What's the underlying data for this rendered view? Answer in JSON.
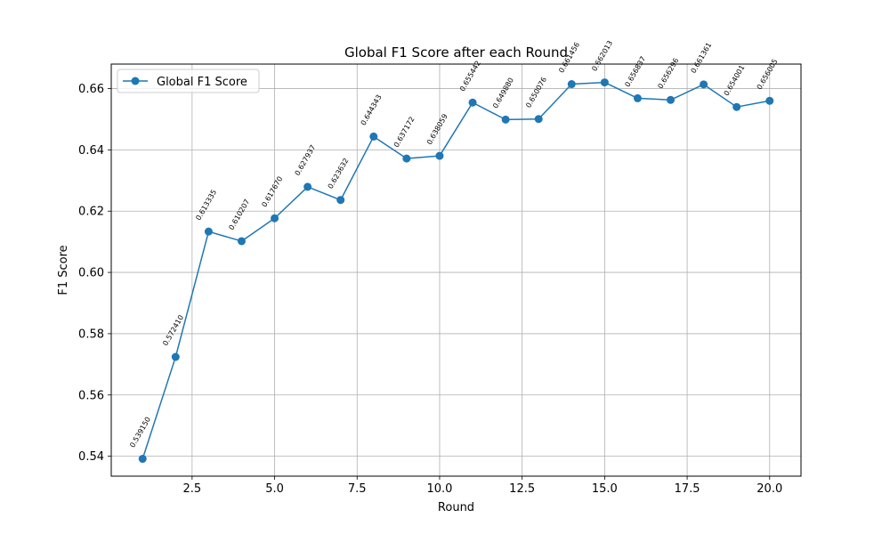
{
  "chart_data": {
    "type": "line",
    "title": "Global F1 Score after each Round",
    "xlabel": "Round",
    "ylabel": "F1 Score",
    "xlim": [
      0.05,
      20.95
    ],
    "ylim": [
      0.5335,
      0.668
    ],
    "xticks": [
      2.5,
      5.0,
      7.5,
      10.0,
      12.5,
      15.0,
      17.5,
      20.0
    ],
    "xtick_labels": [
      "2.5",
      "5.0",
      "7.5",
      "10.0",
      "12.5",
      "15.0",
      "17.5",
      "20.0"
    ],
    "yticks": [
      0.54,
      0.56,
      0.58,
      0.6,
      0.62,
      0.64,
      0.66
    ],
    "ytick_labels": [
      "0.54",
      "0.56",
      "0.58",
      "0.60",
      "0.62",
      "0.64",
      "0.66"
    ],
    "grid": true,
    "legend": {
      "placement": "top-left"
    },
    "series": [
      {
        "name": "Global F1 Score",
        "color": "#1f77b4",
        "x": [
          1,
          2,
          3,
          4,
          5,
          6,
          7,
          8,
          9,
          10,
          11,
          12,
          13,
          14,
          15,
          16,
          17,
          18,
          19,
          20
        ],
        "y": [
          0.53915,
          0.57241,
          0.613335,
          0.610207,
          0.61767,
          0.627937,
          0.623632,
          0.644343,
          0.637172,
          0.638059,
          0.655442,
          0.64988,
          0.650076,
          0.661456,
          0.662013,
          0.656837,
          0.656296,
          0.661361,
          0.654001,
          0.656005
        ],
        "labels": [
          "0.539150",
          "0.572410",
          "0.613335",
          "0.610207",
          "0.617670",
          "0.627937",
          "0.623632",
          "0.644343",
          "0.637172",
          "0.638059",
          "0.655442",
          "0.649880",
          "0.650076",
          "0.661456",
          "0.662013",
          "0.656837",
          "0.656296",
          "0.661361",
          "0.654001",
          "0.656005"
        ]
      }
    ]
  }
}
